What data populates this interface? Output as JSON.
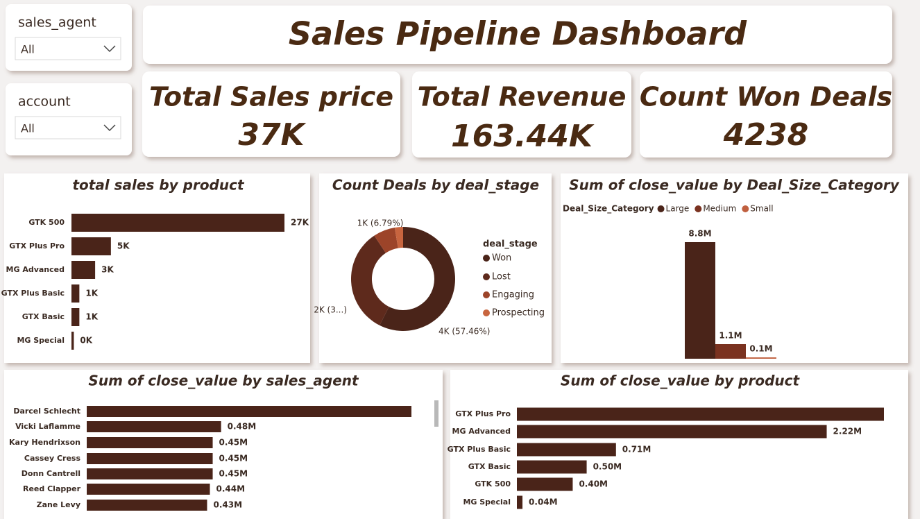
{
  "slicers": [
    {
      "label": "sales_agent",
      "value": "All"
    },
    {
      "label": "account",
      "value": "All"
    }
  ],
  "header": {
    "title": "Sales Pipeline Dashboard"
  },
  "cards": [
    {
      "label": "Total Sales price",
      "value": "37K"
    },
    {
      "label": "Total Revenue",
      "value": "163.44K"
    },
    {
      "label": "Count Won Deals",
      "value": "4238"
    }
  ],
  "chart_data": [
    {
      "type": "hbar",
      "title": "total sales by product",
      "categories": [
        "GTK 500",
        "GTX Plus Pro",
        "MG Advanced",
        "GTX Plus Basic",
        "GTX Basic",
        "MG Special"
      ],
      "values": [
        27000,
        5000,
        3000,
        1000,
        1000,
        300
      ],
      "value_labels": [
        "27K",
        "5K",
        "3K",
        "1K",
        "1K",
        "0K"
      ],
      "color": "#4a2419"
    },
    {
      "type": "donut",
      "title": "Count Deals by deal_stage",
      "legend_title": "deal_stage",
      "categories": [
        "Won",
        "Lost",
        "Engaging",
        "Prospecting"
      ],
      "values": [
        4238,
        2447,
        501,
        190
      ],
      "value_labels": [
        "4K (57.46%)",
        "2K (3...)",
        "1K (6.79%)",
        null
      ],
      "colors": [
        "#4a2419",
        "#5e2a1c",
        "#9c4429",
        "#c8653f"
      ]
    },
    {
      "type": "column",
      "title": "Sum of close_value by Deal_Size_Category",
      "legend_title": "Deal_Size_Category",
      "categories": [
        "Large",
        "Medium",
        "Small"
      ],
      "values": [
        8800000,
        1100000,
        100000
      ],
      "value_labels": [
        "8.8M",
        "1.1M",
        "0.1M"
      ],
      "colors": [
        "#4a2419",
        "#7a3220",
        "#c0603f"
      ]
    },
    {
      "type": "hbar",
      "title": "Sum of close_value by sales_agent",
      "categories": [
        "Darcel Schlecht",
        "Vicki Laflamme",
        "Kary Hendrixson",
        "Cassey Cress",
        "Donn Cantrell",
        "Reed Clapper",
        "Zane Levy"
      ],
      "values": [
        1160000,
        480000,
        450000,
        450000,
        450000,
        440000,
        430000
      ],
      "value_labels": [
        null,
        "0.48M",
        "0.45M",
        "0.45M",
        "0.45M",
        "0.44M",
        "0.43M"
      ],
      "color": "#4a2419"
    },
    {
      "type": "hbar",
      "title": "Sum of close_value by product",
      "categories": [
        "GTX Plus Pro",
        "MG Advanced",
        "GTX Plus Basic",
        "GTX Basic",
        "GTK 500",
        "MG Special"
      ],
      "values": [
        2630000,
        2220000,
        710000,
        500000,
        400000,
        40000
      ],
      "value_labels": [
        null,
        "2.22M",
        "0.71M",
        "0.50M",
        "0.40M",
        "0.04M"
      ],
      "color": "#4a2419"
    }
  ]
}
